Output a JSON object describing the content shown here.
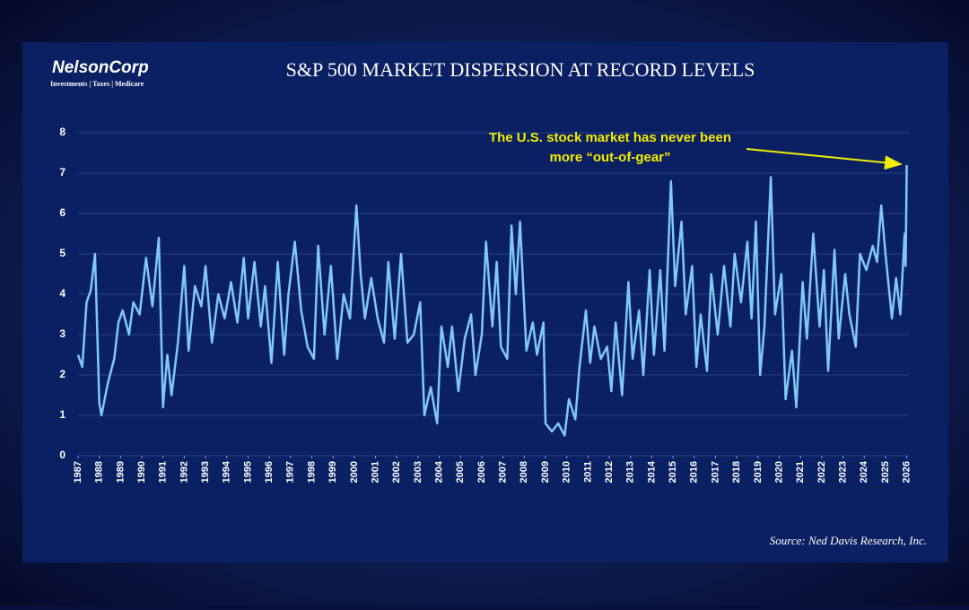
{
  "chart_data": {
    "type": "line",
    "title": "S&P 500 MARKET DISPERSION AT RECORD LEVELS",
    "logo": "NelsonCorp",
    "logo_tagline": "Investments | Taxes | Medicare",
    "annotation": [
      "The U.S. stock market has never been",
      "more “out-of-gear”"
    ],
    "source": "Source: Ned Davis Research, Inc.",
    "x": [
      1987.0,
      1987.2,
      1987.4,
      1987.6,
      1987.8,
      1988.0,
      1988.1,
      1988.4,
      1988.7,
      1988.9,
      1989.1,
      1989.4,
      1989.6,
      1989.9,
      1990.2,
      1990.5,
      1990.8,
      1991.0,
      1991.2,
      1991.4,
      1991.7,
      1992.0,
      1992.2,
      1992.5,
      1992.8,
      1993.0,
      1993.3,
      1993.6,
      1993.9,
      1994.2,
      1994.5,
      1994.8,
      1995.0,
      1995.3,
      1995.6,
      1995.8,
      1996.1,
      1996.4,
      1996.7,
      1996.9,
      1997.2,
      1997.5,
      1997.8,
      1998.1,
      1998.3,
      1998.6,
      1998.9,
      1999.2,
      1999.5,
      1999.8,
      2000.1,
      2000.3,
      2000.5,
      2000.8,
      2001.1,
      2001.4,
      2001.6,
      2001.9,
      2002.2,
      2002.5,
      2002.8,
      2003.1,
      2003.3,
      2003.6,
      2003.9,
      2004.1,
      2004.4,
      2004.6,
      2004.9,
      2005.2,
      2005.5,
      2005.7,
      2006.0,
      2006.2,
      2006.5,
      2006.7,
      2006.9,
      2007.2,
      2007.4,
      2007.6,
      2007.8,
      2008.1,
      2008.4,
      2008.6,
      2008.9,
      2009.0,
      2009.3,
      2009.6,
      2009.9,
      2010.1,
      2010.4,
      2010.6,
      2010.9,
      2011.1,
      2011.3,
      2011.6,
      2011.9,
      2012.1,
      2012.3,
      2012.6,
      2012.9,
      2013.1,
      2013.4,
      2013.6,
      2013.9,
      2014.1,
      2014.4,
      2014.6,
      2014.9,
      2015.1,
      2015.4,
      2015.6,
      2015.9,
      2016.1,
      2016.3,
      2016.6,
      2016.8,
      2017.1,
      2017.4,
      2017.7,
      2017.9,
      2018.2,
      2018.5,
      2018.7,
      2018.9,
      2019.1,
      2019.3,
      2019.6,
      2019.8,
      2020.1,
      2020.3,
      2020.6,
      2020.8,
      2021.1,
      2021.3,
      2021.6,
      2021.9,
      2022.1,
      2022.3,
      2022.6,
      2022.8,
      2023.1,
      2023.3,
      2023.6,
      2023.8,
      2024.1,
      2024.4,
      2024.6,
      2024.8,
      2025.0,
      2025.3,
      2025.5,
      2025.7,
      2025.9,
      2025.95,
      2026.0
    ],
    "series": [
      {
        "color": "#7fc9f5",
        "values": [
          2.5,
          2.2,
          3.8,
          4.1,
          5.0,
          1.3,
          1.0,
          1.8,
          2.4,
          3.3,
          3.6,
          3.0,
          3.8,
          3.5,
          4.9,
          3.7,
          5.4,
          1.2,
          2.5,
          1.5,
          2.8,
          4.7,
          2.6,
          4.2,
          3.7,
          4.7,
          2.8,
          4.0,
          3.4,
          4.3,
          3.3,
          4.9,
          3.4,
          4.8,
          3.2,
          4.2,
          2.3,
          4.8,
          2.5,
          4.0,
          5.3,
          3.6,
          2.7,
          2.4,
          5.2,
          3.0,
          4.7,
          2.4,
          4.0,
          3.4,
          6.2,
          4.5,
          3.4,
          4.4,
          3.4,
          2.8,
          4.8,
          2.9,
          5.0,
          2.8,
          3.0,
          3.8,
          1.0,
          1.7,
          0.8,
          3.2,
          2.2,
          3.2,
          1.6,
          2.9,
          3.5,
          2.0,
          3.0,
          5.3,
          3.2,
          4.8,
          2.7,
          2.4,
          5.7,
          4.0,
          5.8,
          2.6,
          3.3,
          2.5,
          3.3,
          0.8,
          0.6,
          0.8,
          0.5,
          1.4,
          0.9,
          2.2,
          3.6,
          2.3,
          3.2,
          2.4,
          2.7,
          1.6,
          3.3,
          1.5,
          4.3,
          2.4,
          3.6,
          2.0,
          4.6,
          2.5,
          4.6,
          2.6,
          6.8,
          4.2,
          5.8,
          3.5,
          4.7,
          2.2,
          3.5,
          2.1,
          4.5,
          3.0,
          4.7,
          3.2,
          5.0,
          3.8,
          5.3,
          3.4,
          5.8,
          2.0,
          3.2,
          6.9,
          3.5,
          4.5,
          1.4,
          2.6,
          1.2,
          4.3,
          2.9,
          5.5,
          3.2,
          4.6,
          2.1,
          5.1,
          2.9,
          4.5,
          3.5,
          2.7,
          5.0,
          4.6,
          5.2,
          4.8,
          6.2,
          5.0,
          3.4,
          4.4,
          3.5,
          5.5,
          4.7,
          7.2
        ]
      }
    ],
    "xlim": [
      1987,
      2026.1
    ],
    "xticks": [
      1987,
      1988,
      1989,
      1990,
      1991,
      1992,
      1993,
      1994,
      1995,
      1996,
      1997,
      1998,
      1999,
      2000,
      2001,
      2002,
      2003,
      2004,
      2005,
      2006,
      2007,
      2008,
      2009,
      2010,
      2011,
      2012,
      2013,
      2014,
      2015,
      2016,
      2017,
      2018,
      2019,
      2020,
      2021,
      2022,
      2023,
      2024,
      2025,
      2026
    ],
    "ylim": [
      0,
      8
    ],
    "yticks": [
      0,
      1,
      2,
      3,
      4,
      5,
      6,
      7,
      8
    ],
    "grid": true,
    "annotation_color": "#f2ee00"
  }
}
